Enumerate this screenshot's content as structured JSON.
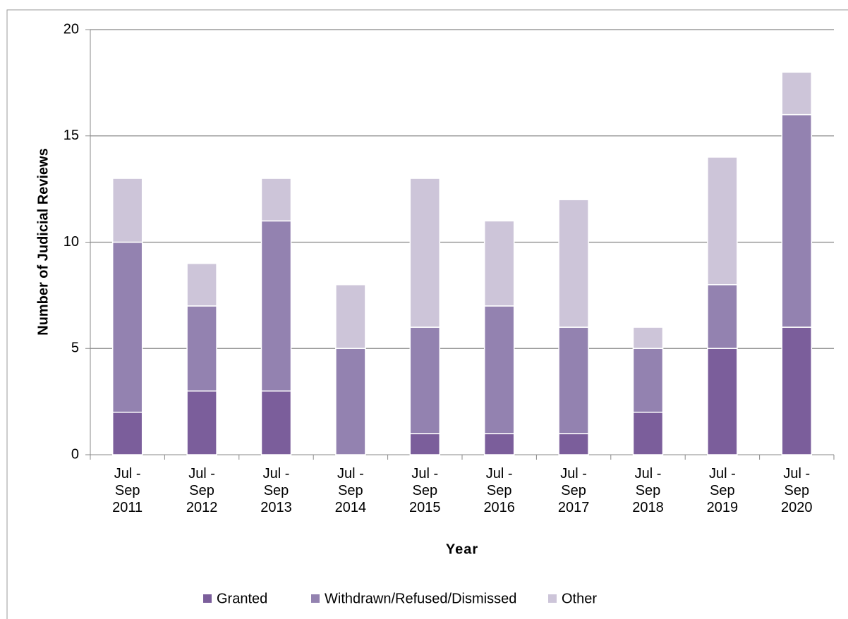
{
  "chart_data": {
    "type": "stacked_bar",
    "x_label": "Year",
    "y_label": "Number of Judicial Reviews",
    "categories": [
      "Jul - Sep 2011",
      "Jul - Sep 2012",
      "Jul - Sep 2013",
      "Jul - Sep 2014",
      "Jul - Sep 2015",
      "Jul - Sep 2016",
      "Jul - Sep 2017",
      "Jul - Sep 2018",
      "Jul - Sep 2019",
      "Jul - Sep 2020"
    ],
    "series": [
      {
        "name": "Granted",
        "color": "#7b5e9b",
        "values": [
          2,
          3,
          3,
          0,
          1,
          1,
          1,
          2,
          5,
          6
        ]
      },
      {
        "name": "Withdrawn/Refused/Dismissed",
        "color": "#9382b0",
        "values": [
          8,
          4,
          8,
          5,
          5,
          6,
          5,
          3,
          3,
          10
        ]
      },
      {
        "name": "Other",
        "color": "#cdc5d9",
        "values": [
          3,
          2,
          2,
          3,
          7,
          4,
          6,
          1,
          6,
          2
        ]
      }
    ],
    "ylim": [
      0,
      20
    ],
    "yticks": [
      0,
      5,
      10,
      15,
      20
    ],
    "grid": true,
    "legend": "bottom"
  }
}
